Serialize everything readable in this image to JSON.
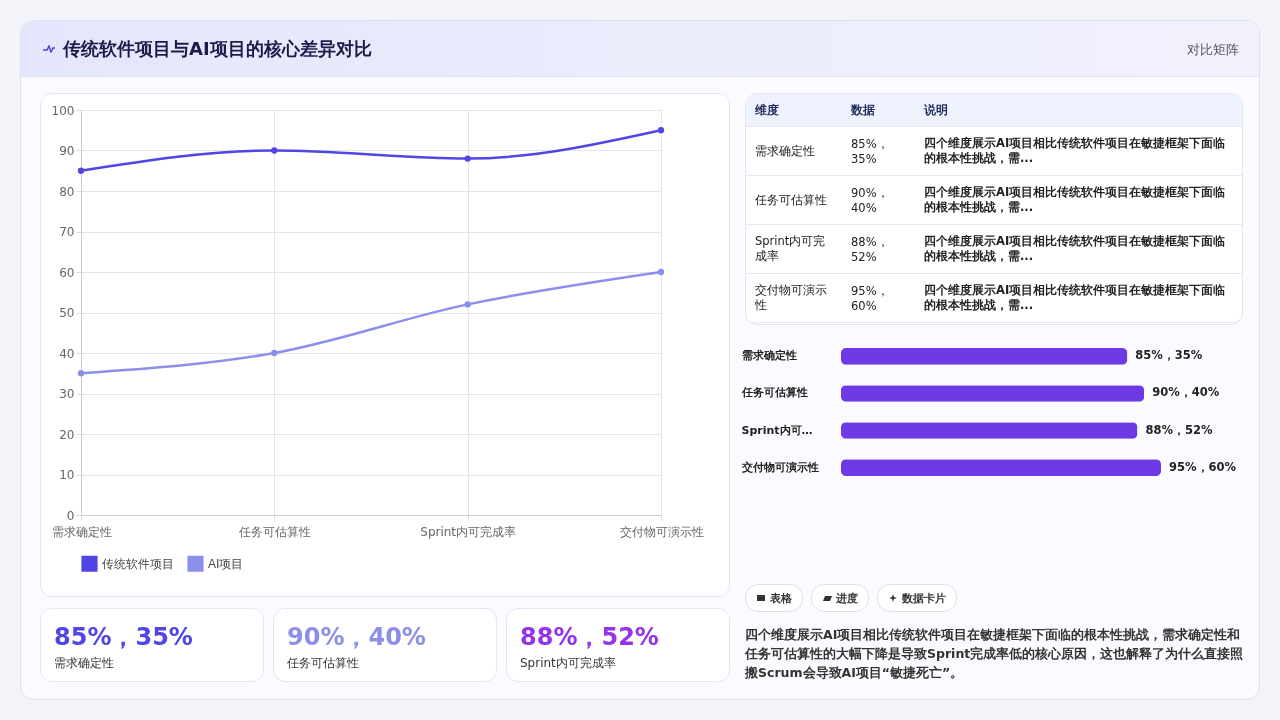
{
  "chart_data": [
    {
      "type": "line",
      "title": "传统软件项目与AI项目的核心差异对比",
      "categories": [
        "需求确定性",
        "任务可估算性",
        "Sprint内可完成率",
        "交付物可演示性"
      ],
      "series": [
        {
          "name": "传统软件项目",
          "color": "#4f46e5",
          "values": [
            85,
            90,
            88,
            95
          ]
        },
        {
          "name": "AI项目",
          "color": "#8b90ec",
          "values": [
            35,
            40,
            52,
            60
          ]
        }
      ],
      "ylim": [
        0,
        100
      ],
      "yticks": [
        0,
        10,
        20,
        30,
        40,
        50,
        60,
        70,
        80,
        90,
        100
      ],
      "grid": true,
      "legend": "bottom",
      "marker": "circle"
    },
    {
      "type": "other",
      "categories": [
        "维度",
        "数据",
        "说明"
      ],
      "annotations": [
        "需求确定性",
        "85%，35%",
        "四个维度展示AI项目相比传统软件项目在敏捷框架下面临的根本性挑战，需...",
        "任务可估算性",
        "90%，40%",
        "四个维度展示AI项目相比传统软件项目在敏捷框架下面临的根本性挑战，需...",
        "Sprint内可完成率",
        "88%，52%",
        "四个维度展示AI项目相比传统软件项目在敏捷框架下面临的根本性挑战，需...",
        "交付物可演示性",
        "95%，60%",
        "四个维度展示AI项目相比传统软件项目在敏捷框架下面临的根本性挑战，需..."
      ]
    },
    {
      "type": "bar",
      "orientation": "horizontal",
      "categories": [
        "需求确定性",
        "任务可估算性",
        "Sprint内可…",
        "交付物可演示性"
      ],
      "values": [
        85,
        90,
        88,
        95
      ],
      "value_labels": [
        "85%，35%",
        "90%，40%",
        "88%，52%",
        "95%，60%"
      ],
      "color": "#6d3ae6"
    },
    {
      "type": "other",
      "categories": [
        "需求确定性",
        "任务可估算性",
        "Sprint内可完成率"
      ],
      "annotations": [
        "85%，35%",
        "90%，40%",
        "88%，52%"
      ]
    },
    {
      "type": "other",
      "categories": [
        "表格",
        "进度",
        "数据卡片"
      ],
      "annotations": [
        "四个维度展示AI项目相比传统软件项目在敏捷框架下面临的根本性挑战，需求确定性和任务可估算性的大幅下降是导致Sprint完成率低的核心原因，这也解释了为什么直接照搬Scrum会导致AI项目“敏捷死亡”。"
      ]
    },
    {
      "type": "other",
      "annotations": [
        "对比矩阵"
      ]
    }
  ]
}
